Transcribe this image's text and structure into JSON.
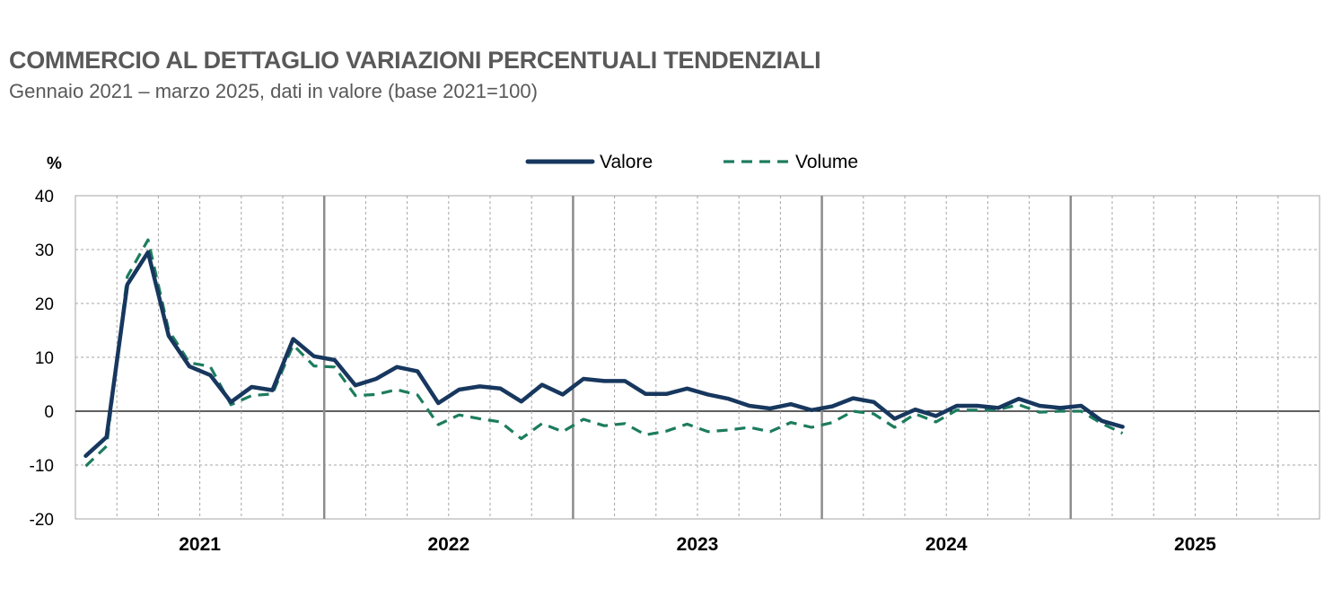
{
  "chart_data": {
    "type": "line",
    "title": "COMMERCIO AL DETTAGLIO VARIAZIONI PERCENTUALI TENDENZIALI",
    "subtitle": "Gennaio 2021 – marzo 2025, dati in valore (base 2021=100)",
    "ylabel": "%",
    "ylim": [
      -20,
      40
    ],
    "yticks": [
      "40",
      "30",
      "20",
      "10",
      "0",
      "-10",
      "-20"
    ],
    "ytick_values": [
      40,
      30,
      20,
      10,
      0,
      -10,
      -20
    ],
    "year_labels": [
      "2021",
      "2022",
      "2023",
      "2024",
      "2025"
    ],
    "months_total": 60,
    "series": [
      {
        "name": "Valore",
        "color": "#17375E",
        "style": "solid",
        "values": [
          -8.3,
          -4.8,
          23.5,
          29.5,
          14.0,
          8.3,
          6.7,
          1.7,
          4.5,
          3.9,
          13.4,
          10.2,
          9.5,
          4.8,
          6.0,
          8.2,
          7.4,
          1.5,
          4.0,
          4.6,
          4.2,
          1.8,
          4.9,
          3.1,
          6.0,
          5.6,
          5.6,
          3.2,
          3.2,
          4.2,
          3.1,
          2.3,
          1.0,
          0.5,
          1.3,
          0.2,
          0.9,
          2.4,
          1.7,
          -1.4,
          0.3,
          -0.9,
          1.0,
          1.0,
          0.6,
          2.3,
          1.0,
          0.6,
          1.0,
          -1.8,
          -2.9
        ]
      },
      {
        "name": "Volume",
        "color": "#1C7C5E",
        "style": "dashed",
        "values": [
          -10.2,
          -6.5,
          25.0,
          31.8,
          15.0,
          9.0,
          8.3,
          1.2,
          2.9,
          3.2,
          12.3,
          8.4,
          8.2,
          2.9,
          3.1,
          4.0,
          3.0,
          -2.5,
          -0.7,
          -1.4,
          -2.0,
          -5.1,
          -2.3,
          -3.8,
          -1.5,
          -2.7,
          -2.3,
          -4.4,
          -3.7,
          -2.4,
          -3.8,
          -3.5,
          -3.0,
          -3.8,
          -2.1,
          -3.0,
          -2.1,
          0.0,
          -0.5,
          -3.0,
          -0.5,
          -2.0,
          0.2,
          0.2,
          0.3,
          1.2,
          -0.2,
          0.0,
          0.0,
          -2.3,
          -4.1
        ]
      }
    ],
    "legend": [
      "Valore",
      "Volume"
    ],
    "grid": true
  }
}
